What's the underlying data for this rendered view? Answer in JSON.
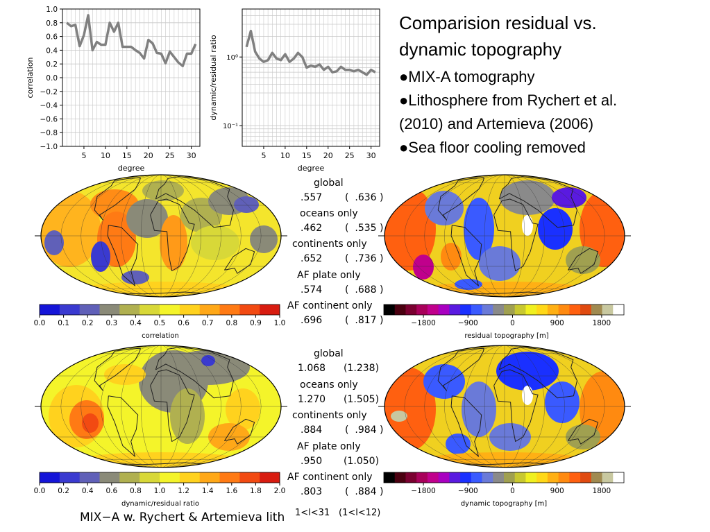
{
  "heading": {
    "line1": "Comparision residual vs.",
    "line2": "dynamic topography",
    "bullets": [
      "MIX-A tomography",
      "Lithosphere from Rychert et al.",
      "(2010) and Artemieva (2006)",
      "Sea floor cooling removed"
    ]
  },
  "chart_data": [
    {
      "type": "line",
      "name": "correlation-vs-degree",
      "xlabel": "degree",
      "ylabel": "correlation",
      "xlim": [
        0,
        32
      ],
      "ylim": [
        -1.0,
        1.0
      ],
      "xticks": [
        5,
        10,
        15,
        20,
        25,
        30
      ],
      "yticks": [
        "1.0",
        "0.8",
        "0.6",
        "0.4",
        "0.2",
        "0.0",
        "−0.2",
        "−0.4",
        "−0.6",
        "−0.8",
        "−1.0"
      ],
      "ytick_values": [
        1.0,
        0.8,
        0.6,
        0.4,
        0.2,
        0.0,
        -0.2,
        -0.4,
        -0.6,
        -0.8,
        -1.0
      ],
      "grid": true,
      "x": [
        1,
        2,
        3,
        4,
        5,
        6,
        7,
        8,
        9,
        10,
        11,
        12,
        13,
        14,
        15,
        16,
        17,
        18,
        19,
        20,
        21,
        22,
        23,
        24,
        25,
        26,
        27,
        28,
        29,
        30,
        31
      ],
      "y": [
        0.8,
        0.75,
        0.77,
        0.46,
        0.62,
        0.91,
        0.4,
        0.52,
        0.48,
        0.48,
        0.8,
        0.67,
        0.8,
        0.45,
        0.45,
        0.45,
        0.4,
        0.36,
        0.28,
        0.55,
        0.5,
        0.36,
        0.35,
        0.21,
        0.38,
        0.3,
        0.22,
        0.17,
        0.35,
        0.35,
        0.49
      ]
    },
    {
      "type": "line",
      "name": "ratio-vs-degree",
      "xlabel": "degree",
      "ylabel": "dynamic/residual ratio",
      "yscale": "log",
      "xlim": [
        0,
        32
      ],
      "ylim": [
        0.05,
        5
      ],
      "xticks": [
        5,
        10,
        15,
        20,
        25,
        30
      ],
      "ytick_labels": [
        "10⁰",
        "10⁻¹"
      ],
      "ytick_values": [
        1,
        0.1
      ],
      "grid": true,
      "x": [
        1,
        2,
        3,
        4,
        5,
        6,
        7,
        8,
        9,
        10,
        11,
        12,
        13,
        14,
        15,
        16,
        17,
        18,
        19,
        20,
        21,
        22,
        23,
        24,
        25,
        26,
        27,
        28,
        29,
        30,
        31
      ],
      "y": [
        1.4,
        2.4,
        1.2,
        0.95,
        0.85,
        0.9,
        1.15,
        0.95,
        0.9,
        1.1,
        0.85,
        0.95,
        1.15,
        1.0,
        0.7,
        0.75,
        0.72,
        0.78,
        0.65,
        0.72,
        0.6,
        0.62,
        0.72,
        0.65,
        0.65,
        0.62,
        0.65,
        0.6,
        0.55,
        0.65,
        0.6
      ]
    },
    {
      "type": "colorbar",
      "name": "correlation-colorbar",
      "label": "correlation",
      "ticks": [
        "0.0",
        "0.1",
        "0.2",
        "0.3",
        "0.4",
        "0.5",
        "0.6",
        "0.7",
        "0.8",
        "0.9",
        "1.0"
      ],
      "colors": [
        "#1515d8",
        "#3a3ad0",
        "#6060b8",
        "#8a8a78",
        "#b0b050",
        "#d8d838",
        "#f4f42a",
        "#ffd21e",
        "#ffa818",
        "#ff7a14",
        "#f24a12",
        "#d81c10"
      ]
    },
    {
      "type": "colorbar",
      "name": "ratio-colorbar",
      "label": "dynamic/residual ratio",
      "ticks": [
        "0.0",
        "0.2",
        "0.4",
        "0.6",
        "0.8",
        "1.0",
        "1.2",
        "1.4",
        "1.6",
        "1.8",
        "2.0"
      ],
      "colors": [
        "#1515d8",
        "#3a3ad0",
        "#6060b8",
        "#8a8a78",
        "#b0b050",
        "#d8d838",
        "#f4f42a",
        "#ffd21e",
        "#ffa818",
        "#ff7a14",
        "#f24a12",
        "#d81c10"
      ]
    },
    {
      "type": "colorbar",
      "name": "residual-topography-colorbar",
      "label": "residual topography [m]",
      "ticks": [
        "−1800",
        "−900",
        "0",
        "900",
        "1800"
      ],
      "tick_values": [
        -1800,
        -900,
        0,
        900,
        1800
      ],
      "range": [
        -2600,
        2250
      ],
      "colors": [
        "#000000",
        "#4a0010",
        "#7a0030",
        "#a8005a",
        "#c0008c",
        "#a800c0",
        "#5a1ae0",
        "#1a30ff",
        "#3a5aff",
        "#6a7ad8",
        "#8a8a8a",
        "#a0a050",
        "#c8c830",
        "#f0f020",
        "#ffd818",
        "#ffb014",
        "#ff8a10",
        "#ff6010",
        "#e04a10",
        "#a08a50",
        "#c8c8a0",
        "#ffffff"
      ]
    },
    {
      "type": "colorbar",
      "name": "dynamic-topography-colorbar",
      "label": "dynamic topography [m]",
      "ticks": [
        "−1800",
        "−900",
        "0",
        "900",
        "1800"
      ],
      "tick_values": [
        -1800,
        -900,
        0,
        900,
        1800
      ],
      "range": [
        -2600,
        2250
      ],
      "colors": [
        "#000000",
        "#4a0010",
        "#7a0030",
        "#a8005a",
        "#c0008c",
        "#a800c0",
        "#5a1ae0",
        "#1a30ff",
        "#3a5aff",
        "#6a7ad8",
        "#8a8a8a",
        "#a0a050",
        "#c8c830",
        "#f0f020",
        "#ffd818",
        "#ffb014",
        "#ff8a10",
        "#ff6010",
        "#e04a10",
        "#a08a50",
        "#c8c8a0",
        "#ffffff"
      ]
    }
  ],
  "stats_top": [
    {
      "label": "global",
      "a": ".557",
      "b": ".636"
    },
    {
      "label": "oceans only",
      "a": ".462",
      "b": ".535"
    },
    {
      "label": "continents only",
      "a": ".652",
      "b": ".736"
    },
    {
      "label": "AF plate only",
      "a": ".574",
      "b": ".688"
    },
    {
      "label": "AF continent only",
      "a": ".696",
      "b": ".817"
    }
  ],
  "stats_bottom": [
    {
      "label": "global",
      "a": "1.068",
      "b": "1.238"
    },
    {
      "label": "oceans only",
      "a": "1.270",
      "b": "1.505"
    },
    {
      "label": "continents only",
      "a": ".884",
      "b": ".984"
    },
    {
      "label": "AF plate only",
      "a": ".950",
      "b": "1.050"
    },
    {
      "label": "AF continent only",
      "a": ".803",
      "b": ".884"
    }
  ],
  "footer": {
    "caption": "MIX−A w. Rychert & Artemieva lith",
    "range_a": "1<l<31",
    "range_b": "(1<l<12)"
  },
  "colors": {
    "line": "#808080",
    "grid": "#c8c8c8",
    "coast": "#202020"
  }
}
